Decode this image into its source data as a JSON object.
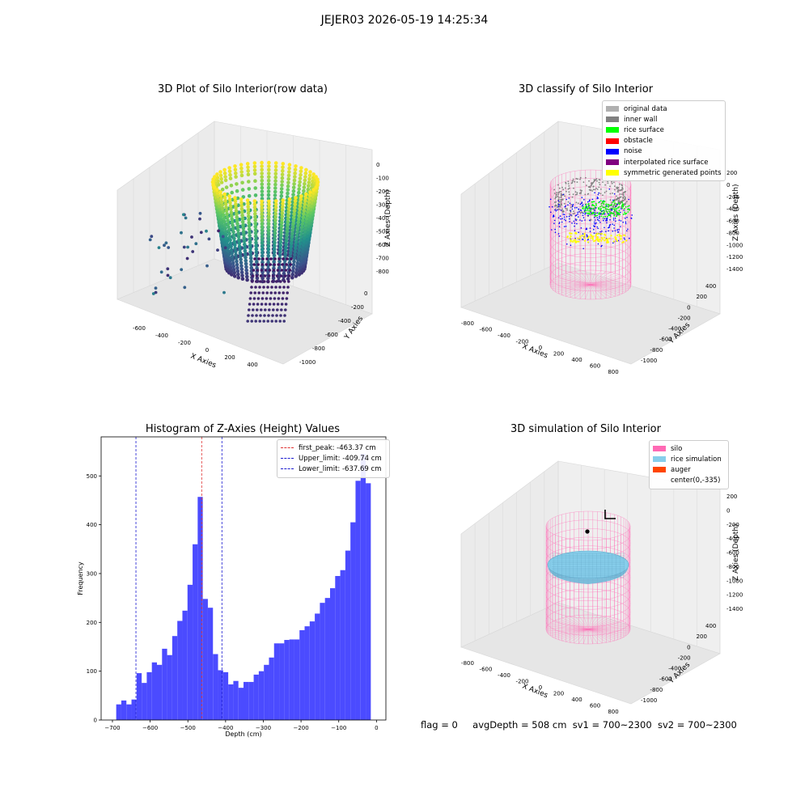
{
  "figure_title": "JEJER03 2026-05-19 14:25:34",
  "status": {
    "flag": "flag = 0",
    "avg_depth": "avgDepth = 508 cm",
    "sv1": "sv1 = 700~2300",
    "sv2": "sv2 = 700~2300"
  },
  "colors": {
    "pane": "#f2f2f2",
    "grid": "#dcdcdc",
    "histogram": "#4b4bff",
    "peak_line": "#e03030",
    "limit_line": "#1a1ad0",
    "silo": "#ff69b4",
    "rice": "#87ceeb",
    "auger": "#ff4500"
  },
  "chart_data": [
    {
      "type": "scatter",
      "subtype": "3d",
      "title": "3D Plot of Silo Interior(row data)",
      "xlabel": "X Axies",
      "ylabel": "Y Axies",
      "zlabel": "Z Axies (Depth)",
      "x_ticks": [
        "-600",
        "-400",
        "-200",
        "0",
        "200",
        "400"
      ],
      "y_ticks": [
        "0",
        "-200",
        "-400",
        "-600",
        "-800",
        "-1000"
      ],
      "z_ticks": [
        "0",
        "-100",
        "-200",
        "-300",
        "-400",
        "-500",
        "-600",
        "-700",
        "-800"
      ],
      "colormap": "viridis",
      "zlim": [
        -830,
        20
      ]
    },
    {
      "type": "scatter",
      "subtype": "3d",
      "title": "3D classify of Silo Interior",
      "xlabel": "X Axies",
      "ylabel": "Y Axies",
      "zlabel": "Z Axies (Depth)",
      "x_ticks": [
        "-800",
        "-600",
        "-400",
        "-200",
        "0",
        "200",
        "400",
        "600",
        "800"
      ],
      "y_ticks": [
        "400",
        "200",
        "0",
        "-200",
        "-400",
        "-600",
        "-800",
        "-1000"
      ],
      "z_ticks": [
        "200",
        "0",
        "-200",
        "-400",
        "-600",
        "-800",
        "-1000",
        "-1200",
        "-1400"
      ],
      "legend_position": "top-right",
      "legend": [
        {
          "label": "original data",
          "color": "#b0b0b0"
        },
        {
          "label": "inner wall",
          "color": "#808080"
        },
        {
          "label": "rice surface",
          "color": "#00ff00"
        },
        {
          "label": "obstacle",
          "color": "#ff0000"
        },
        {
          "label": "noise",
          "color": "#0000ff"
        },
        {
          "label": "interpolated rice surface",
          "color": "#800080"
        },
        {
          "label": "symmetric generated points",
          "color": "#ffff00"
        }
      ]
    },
    {
      "type": "bar",
      "subtype": "histogram",
      "title": "Histogram of Z-Axies (Height) Values",
      "xlabel": "Depth (cm)",
      "ylabel": "Frequency",
      "xlim": [
        -730,
        25
      ],
      "ylim": [
        0,
        580
      ],
      "x_ticks": [
        -700,
        -600,
        -500,
        -400,
        -300,
        -200,
        -100,
        0
      ],
      "y_ticks": [
        0,
        100,
        200,
        300,
        400,
        500
      ],
      "bin_width": 13.5,
      "bin_start": -690,
      "values": [
        32,
        40,
        32,
        42,
        96,
        76,
        98,
        118,
        113,
        146,
        133,
        172,
        203,
        224,
        277,
        360,
        457,
        248,
        230,
        135,
        102,
        98,
        73,
        80,
        66,
        78,
        78,
        93,
        100,
        113,
        128,
        157,
        157,
        164,
        165,
        165,
        184,
        192,
        202,
        218,
        240,
        250,
        270,
        295,
        307,
        347,
        405,
        490,
        545,
        485
      ],
      "legend_position": "top-right",
      "vlines": [
        {
          "label": "first_peak: -463.37 cm",
          "x": -463.37,
          "color": "#e03030"
        },
        {
          "label": "Upper_limit: -409.74 cm",
          "x": -409.74,
          "color": "#1a1ad0"
        },
        {
          "label": "Lower_limit: -637.69 cm",
          "x": -637.69,
          "color": "#1a1ad0"
        }
      ]
    },
    {
      "type": "scatter",
      "subtype": "3d",
      "title": "3D simulation of Silo Interior",
      "xlabel": "X Axies",
      "ylabel": "Y Axies",
      "zlabel": "Z Axies (Depth)",
      "x_ticks": [
        "-800",
        "-600",
        "-400",
        "-200",
        "0",
        "200",
        "400",
        "600",
        "800"
      ],
      "y_ticks": [
        "400",
        "200",
        "0",
        "-200",
        "-400",
        "-600",
        "-800",
        "-1000"
      ],
      "z_ticks": [
        "200",
        "0",
        "-200",
        "-400",
        "-600",
        "-800",
        "-1000",
        "-1200",
        "-1400"
      ],
      "legend_position": "top-right",
      "legend": [
        {
          "label": "silo",
          "color": "#ff69b4"
        },
        {
          "label": "rice simulation",
          "color": "#87ceeb"
        },
        {
          "label": "auger",
          "color": "#ff4500"
        },
        {
          "label": "center(0,-335)",
          "color": ""
        }
      ]
    }
  ]
}
